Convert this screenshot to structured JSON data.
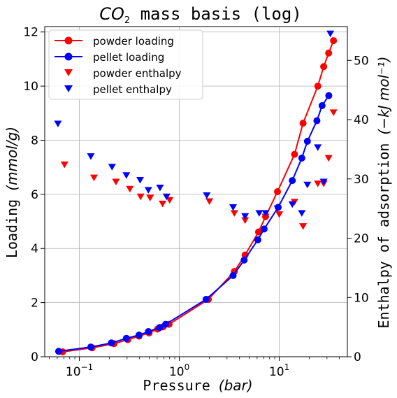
{
  "chart_data": {
    "type": "scatter",
    "title": {
      "main": "CO",
      "sub": "2",
      "rest": " mass basis (log)"
    },
    "xlabel": {
      "text": "Pressure ",
      "unit": "(bar)"
    },
    "ylabel_left": {
      "text": "Loading ",
      "unit": "(mmol/g)"
    },
    "ylabel_right": {
      "text": "Enthalpy of adsorption ",
      "unit": "(−kJ mol⁻¹)"
    },
    "x_scale": "log",
    "xlim": [
      0.045,
      48
    ],
    "ylim_left": [
      0,
      12.2
    ],
    "ylim_right": [
      0,
      55.7
    ],
    "x_ticks": [
      {
        "value": 0.1,
        "label": "10",
        "exp": "−1"
      },
      {
        "value": 1,
        "label": "10",
        "exp": "0"
      },
      {
        "value": 10,
        "label": "10",
        "exp": "1"
      }
    ],
    "y_left_ticks": [
      0,
      2,
      4,
      6,
      8,
      10,
      12
    ],
    "y_right_ticks": [
      0,
      10,
      20,
      30,
      40,
      50
    ],
    "grid": true,
    "legend_position": "top-left",
    "series": [
      {
        "name": "powder loading",
        "axis": "left",
        "style": "line-marker",
        "color": "#ff0000",
        "x": [
          0.068,
          0.134,
          0.222,
          0.305,
          0.395,
          0.498,
          0.605,
          0.686,
          0.79,
          1.95,
          3.55,
          4.55,
          6.2,
          7.3,
          9.6,
          14.2,
          17.3,
          24.3,
          27.8,
          31.2,
          34.9
        ],
        "y": [
          0.18,
          0.33,
          0.48,
          0.63,
          0.76,
          0.88,
          1.02,
          1.1,
          1.2,
          2.12,
          3.15,
          3.76,
          4.61,
          5.18,
          6.1,
          7.48,
          8.63,
          10.0,
          10.72,
          11.22,
          11.68
        ]
      },
      {
        "name": "pellet loading",
        "axis": "left",
        "style": "line-marker",
        "color": "#0000ff",
        "x": [
          0.062,
          0.13,
          0.209,
          0.295,
          0.395,
          0.49,
          0.635,
          0.73,
          1.85,
          3.45,
          4.45,
          6.1,
          7.05,
          9.75,
          13.5,
          16.8,
          19.1,
          23.8,
          26.8,
          31.3
        ],
        "y": [
          0.2,
          0.36,
          0.51,
          0.68,
          0.8,
          0.93,
          1.08,
          1.2,
          2.12,
          3.0,
          3.57,
          4.32,
          4.72,
          5.52,
          6.51,
          7.34,
          7.96,
          8.72,
          9.28,
          9.65
        ]
      },
      {
        "name": "powder enthalpy",
        "axis": "right",
        "style": "marker-down",
        "color": "#ff0000",
        "x": [
          0.071,
          0.14,
          0.232,
          0.32,
          0.41,
          0.51,
          0.68,
          0.8,
          2.0,
          3.55,
          4.55,
          7.3,
          10.0,
          14.2,
          17.3,
          24.3,
          27.8,
          31.2,
          34.9
        ],
        "y": [
          32.4,
          30.2,
          29.5,
          28.3,
          27.0,
          26.8,
          25.8,
          26.4,
          26.2,
          24.2,
          23.0,
          23.6,
          24.0,
          26.1,
          22.0,
          29.2,
          29.2,
          33.5,
          41.2
        ]
      },
      {
        "name": "pellet enthalpy",
        "axis": "right",
        "style": "marker-down",
        "color": "#0000ff",
        "x": [
          0.061,
          0.13,
          0.212,
          0.295,
          0.405,
          0.49,
          0.64,
          0.745,
          1.88,
          3.45,
          4.55,
          6.3,
          7.3,
          9.6,
          13.5,
          16.8,
          19.1,
          24.3,
          27.8,
          32.4
        ],
        "y": [
          39.3,
          33.8,
          32.0,
          30.6,
          29.8,
          28.1,
          28.5,
          27.0,
          27.2,
          25.2,
          23.7,
          24.2,
          24.2,
          25.0,
          25.7,
          24.2,
          29.0,
          35.3,
          29.5,
          54.5
        ]
      }
    ]
  }
}
